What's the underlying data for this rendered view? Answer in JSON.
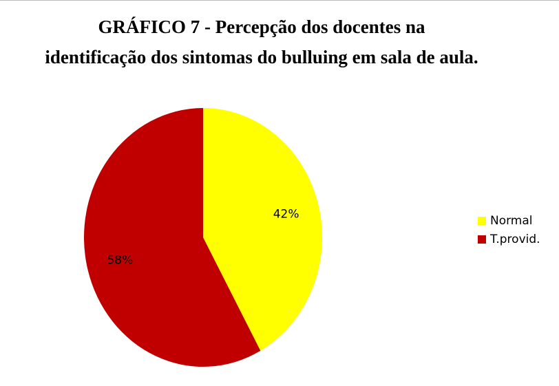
{
  "chart_data": {
    "type": "pie",
    "title": [
      "GRÁFICO 7  - Percepção dos docentes na",
      "identificação dos sintomas do bulluing em sala de aula."
    ],
    "categories": [
      "Normal",
      "T.provid."
    ],
    "values": [
      42,
      58
    ],
    "value_labels": [
      "42%",
      "58%"
    ],
    "colors": [
      "#ffff00",
      "#c00000"
    ],
    "legend": "right"
  }
}
